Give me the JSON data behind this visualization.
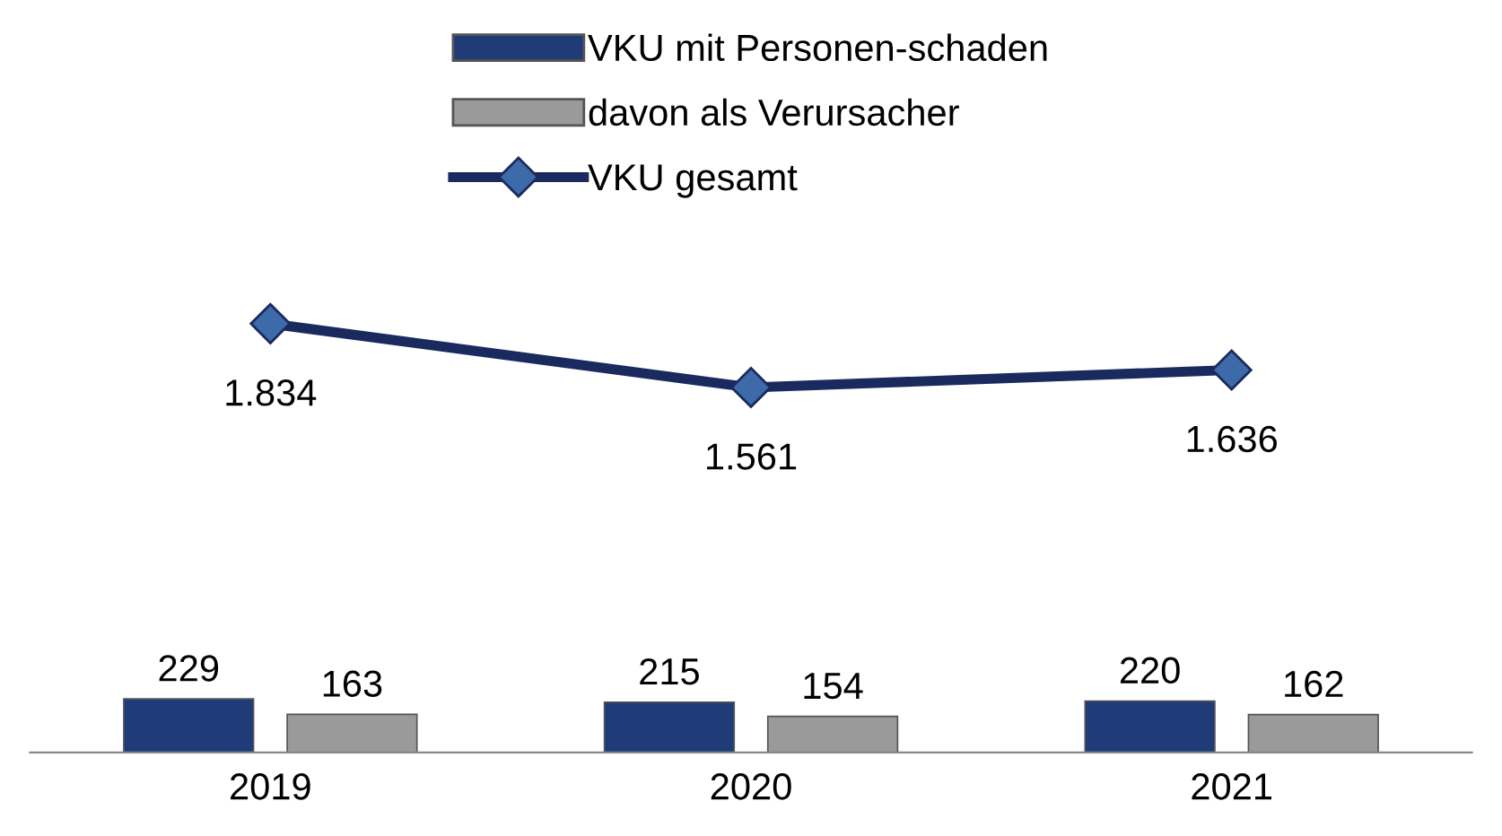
{
  "chart_data": {
    "type": "bar",
    "categories": [
      "2019",
      "2020",
      "2021"
    ],
    "series": [
      {
        "name": "VKU mit Personen-schaden",
        "color": "#1f3b78",
        "values": [
          229,
          215,
          220
        ]
      },
      {
        "name": "davon als Verursacher",
        "color": "#9a9a9a",
        "values": [
          163,
          154,
          162
        ]
      },
      {
        "name": "VKU gesamt",
        "color": "#1b2a5e",
        "type": "line",
        "marker": "diamond",
        "values": [
          1834,
          1561,
          1636
        ],
        "value_labels": [
          "1.834",
          "1.561",
          "1.636"
        ]
      }
    ],
    "data_labels": true,
    "legend": "top",
    "tick_labels": "x",
    "grid": false
  }
}
